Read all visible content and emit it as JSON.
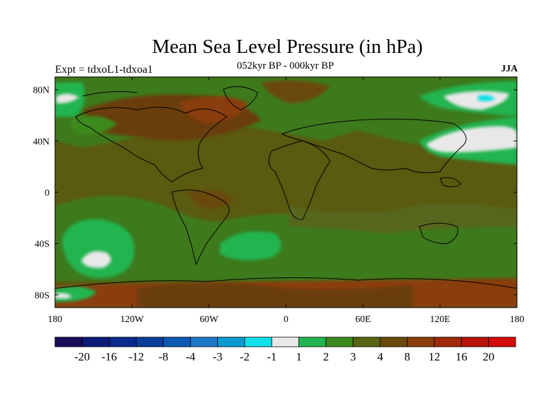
{
  "title": "Mean Sea Level Pressure (in hPa)",
  "left_label": "Expt = tdxoL1-tdxoa1",
  "center_label": "052kyr BP - 000kyr BP",
  "right_label": "JJA",
  "map": {
    "projection": "cylindrical equidistant",
    "lon_range": [
      -180,
      180
    ],
    "lat_range": [
      -90,
      90
    ],
    "x_ticks": [
      {
        "lon": -180,
        "label": "180"
      },
      {
        "lon": -120,
        "label": "120W"
      },
      {
        "lon": -60,
        "label": "60W"
      },
      {
        "lon": 0,
        "label": "0"
      },
      {
        "lon": 60,
        "label": "60E"
      },
      {
        "lon": 120,
        "label": "120E"
      },
      {
        "lon": 180,
        "label": "180"
      }
    ],
    "y_ticks": [
      {
        "lat": 80,
        "label": "80N"
      },
      {
        "lat": 40,
        "label": "40N"
      },
      {
        "lat": 0,
        "label": "0"
      },
      {
        "lat": -40,
        "label": "40S"
      },
      {
        "lat": -80,
        "label": "80S"
      }
    ],
    "background_color": "#5a5a10"
  },
  "colorbar": {
    "colors": [
      "#1a0a5a",
      "#0e1a78",
      "#0a2a8c",
      "#0a3c9a",
      "#0a5ab4",
      "#1e78c8",
      "#0a9ad2",
      "#10e0e8",
      "#e8e8e8",
      "#22b450",
      "#3c8a1e",
      "#566414",
      "#6a4a0a",
      "#8a3c0a",
      "#a02a0a",
      "#b8140a",
      "#d20a0a"
    ],
    "labels": [
      "-20",
      "-16",
      "-12",
      "-8",
      "-4",
      "-3",
      "-2",
      "-1",
      "1",
      "2",
      "3",
      "4",
      "8",
      "12",
      "16",
      "20"
    ]
  }
}
